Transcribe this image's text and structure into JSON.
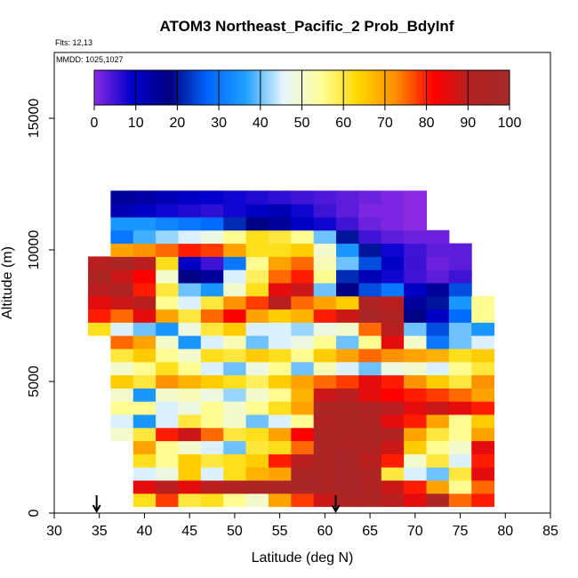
{
  "chart_data": {
    "type": "heatmap",
    "title": "ATOM3 Northeast_Pacific_2 Prob_BdyInf",
    "annotations": {
      "flights": "Flts: 12,13",
      "dates": "MMDD: 1025,1027"
    },
    "xlabel": "Latitude (deg N)",
    "ylabel": "Altitude (m)",
    "xlim": [
      30,
      85
    ],
    "ylim": [
      0,
      17500
    ],
    "x_ticks": [
      30,
      35,
      40,
      45,
      50,
      55,
      60,
      65,
      70,
      75,
      80,
      85
    ],
    "x_tick_labels": [
      "30",
      "35",
      "40",
      "45",
      "50",
      "55",
      "60",
      "65",
      "70",
      "75",
      "80",
      "85"
    ],
    "y_ticks": [
      0,
      5000,
      10000,
      15000
    ],
    "y_tick_labels": [
      "0",
      "5000",
      "10000",
      "15000"
    ],
    "colorbar": {
      "range": [
        0,
        100
      ],
      "ticks": [
        0,
        10,
        20,
        30,
        40,
        50,
        60,
        70,
        80,
        90,
        100
      ],
      "tick_labels": [
        "0",
        "10",
        "20",
        "30",
        "40",
        "50",
        "60",
        "70",
        "80",
        "90",
        "100"
      ],
      "colors": [
        "#8a2be2",
        "#0000cd",
        "#000080",
        "#0066ff",
        "#1ea0ff",
        "#e6f5ff",
        "#ffff99",
        "#ffd700",
        "#ff8c00",
        "#ff0000",
        "#b22222",
        "#a52a2a"
      ]
    },
    "arrows_at_latitude": [
      34.7,
      61.2
    ],
    "cells_lat": [
      35,
      37.5,
      40,
      42.5,
      45,
      47.5,
      50,
      52.5,
      55,
      57.5,
      60,
      62.5,
      65,
      67.5,
      70,
      72.5,
      75,
      77.5,
      80
    ],
    "cells_alt": [
      500,
      1000,
      1500,
      2000,
      2500,
      3000,
      3500,
      4000,
      4500,
      5000,
      5500,
      6000,
      6500,
      7000,
      7500,
      8000,
      8500,
      9000,
      9500,
      10000,
      10500,
      11000,
      11500,
      12000,
      12500
    ],
    "values": [
      [
        null,
        null,
        62,
        78,
        60,
        62,
        55,
        50,
        70,
        78,
        88,
        95,
        95,
        90,
        85,
        95,
        75,
        80,
        null
      ],
      [
        null,
        null,
        85,
        90,
        85,
        90,
        92,
        95,
        95,
        97,
        95,
        97,
        93,
        88,
        80,
        70,
        55,
        75,
        null
      ],
      [
        null,
        null,
        45,
        48,
        65,
        45,
        62,
        68,
        70,
        95,
        95,
        97,
        93,
        60,
        45,
        40,
        60,
        85,
        null
      ],
      [
        null,
        null,
        62,
        55,
        65,
        60,
        62,
        65,
        80,
        90,
        95,
        97,
        90,
        80,
        50,
        60,
        45,
        80,
        null
      ],
      [
        null,
        null,
        70,
        55,
        50,
        45,
        40,
        60,
        62,
        75,
        95,
        93,
        92,
        88,
        65,
        55,
        50,
        85,
        null
      ],
      [
        null,
        50,
        60,
        80,
        88,
        75,
        60,
        62,
        70,
        82,
        95,
        95,
        95,
        92,
        70,
        60,
        55,
        70,
        null
      ],
      [
        null,
        45,
        35,
        45,
        60,
        55,
        50,
        40,
        45,
        55,
        92,
        95,
        92,
        85,
        80,
        70,
        55,
        65,
        null
      ],
      [
        null,
        55,
        55,
        45,
        48,
        55,
        50,
        55,
        62,
        70,
        95,
        95,
        92,
        90,
        85,
        88,
        85,
        80,
        null
      ],
      [
        null,
        50,
        35,
        50,
        52,
        48,
        42,
        50,
        55,
        68,
        88,
        90,
        85,
        82,
        80,
        78,
        75,
        70,
        null
      ],
      [
        null,
        65,
        60,
        72,
        68,
        65,
        62,
        58,
        65,
        70,
        75,
        78,
        85,
        80,
        72,
        65,
        60,
        72,
        null
      ],
      [
        null,
        50,
        55,
        62,
        55,
        45,
        40,
        48,
        55,
        40,
        52,
        45,
        40,
        48,
        50,
        45,
        55,
        60,
        null
      ],
      [
        null,
        60,
        65,
        55,
        50,
        62,
        60,
        65,
        62,
        55,
        65,
        70,
        75,
        72,
        70,
        68,
        62,
        65,
        null
      ],
      [
        null,
        75,
        70,
        50,
        35,
        45,
        52,
        40,
        45,
        48,
        55,
        40,
        55,
        85,
        50,
        30,
        40,
        45,
        null
      ],
      [
        62,
        45,
        40,
        35,
        48,
        60,
        65,
        45,
        45,
        42,
        48,
        50,
        75,
        90,
        40,
        25,
        40,
        35,
        null
      ],
      [
        80,
        75,
        85,
        70,
        60,
        75,
        82,
        70,
        65,
        68,
        80,
        88,
        97,
        92,
        18,
        10,
        28,
        55,
        null
      ],
      [
        85,
        88,
        90,
        55,
        45,
        60,
        72,
        78,
        90,
        75,
        70,
        65,
        92,
        90,
        15,
        20,
        35,
        55,
        null
      ],
      [
        90,
        92,
        80,
        60,
        40,
        35,
        50,
        62,
        85,
        88,
        40,
        18,
        25,
        30,
        10,
        15,
        25,
        null,
        null
      ],
      [
        95,
        88,
        82,
        50,
        18,
        15,
        45,
        58,
        75,
        80,
        55,
        22,
        12,
        8,
        5,
        3,
        5,
        null,
        null
      ],
      [
        90,
        95,
        90,
        62,
        10,
        5,
        30,
        55,
        70,
        75,
        52,
        40,
        25,
        10,
        5,
        2,
        3,
        null,
        null
      ],
      [
        null,
        70,
        72,
        75,
        80,
        78,
        70,
        62,
        62,
        65,
        50,
        35,
        20,
        8,
        5,
        3,
        3,
        null,
        null
      ],
      [
        null,
        30,
        38,
        42,
        45,
        48,
        55,
        62,
        60,
        55,
        40,
        20,
        5,
        3,
        2,
        2,
        null,
        null,
        null
      ],
      [
        null,
        35,
        35,
        32,
        30,
        28,
        22,
        18,
        15,
        10,
        8,
        5,
        2,
        1,
        0,
        null,
        null,
        null,
        null
      ],
      [
        null,
        12,
        10,
        8,
        7,
        6,
        8,
        10,
        12,
        8,
        5,
        3,
        1,
        1,
        0,
        null,
        null,
        null,
        null
      ],
      [
        null,
        15,
        14,
        12,
        10,
        9,
        8,
        7,
        6,
        5,
        4,
        3,
        2,
        1,
        0,
        null,
        null,
        null,
        null
      ],
      [
        null,
        null,
        null,
        null,
        null,
        null,
        null,
        null,
        null,
        null,
        null,
        null,
        null,
        null,
        null,
        null,
        null,
        null,
        null
      ]
    ]
  }
}
